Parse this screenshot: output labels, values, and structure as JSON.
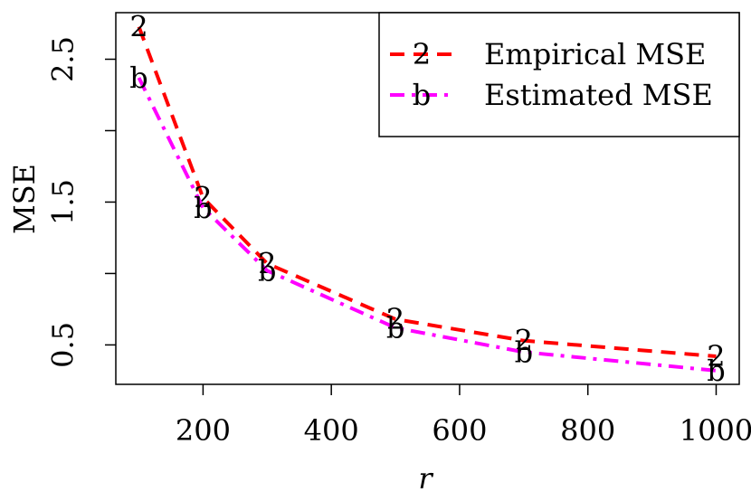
{
  "chart_data": {
    "type": "line",
    "x_label": "r",
    "y_label": "MSE",
    "x": [
      100,
      200,
      300,
      500,
      700,
      1000
    ],
    "series": [
      {
        "name": "Empirical MSE",
        "color": "#ff0000",
        "marker": "2",
        "dash": "16 10",
        "values": [
          2.727,
          1.53,
          1.07,
          0.68,
          0.53,
          0.42
        ]
      },
      {
        "name": "Estimated MSE",
        "color": "#ff00ff",
        "marker": "b",
        "dash": "16 8 4 8",
        "values": [
          2.37,
          1.46,
          1.02,
          0.62,
          0.45,
          0.32
        ]
      }
    ],
    "xlim": [
      64,
      1036
    ],
    "xticks": [
      200,
      400,
      600,
      800,
      1000
    ],
    "ylim": [
      0.224,
      2.826
    ],
    "yticks": [
      0.5,
      1.5,
      2.5
    ],
    "yminor_ticks": [
      1,
      2
    ],
    "legend": "top-right",
    "grid": false
  }
}
